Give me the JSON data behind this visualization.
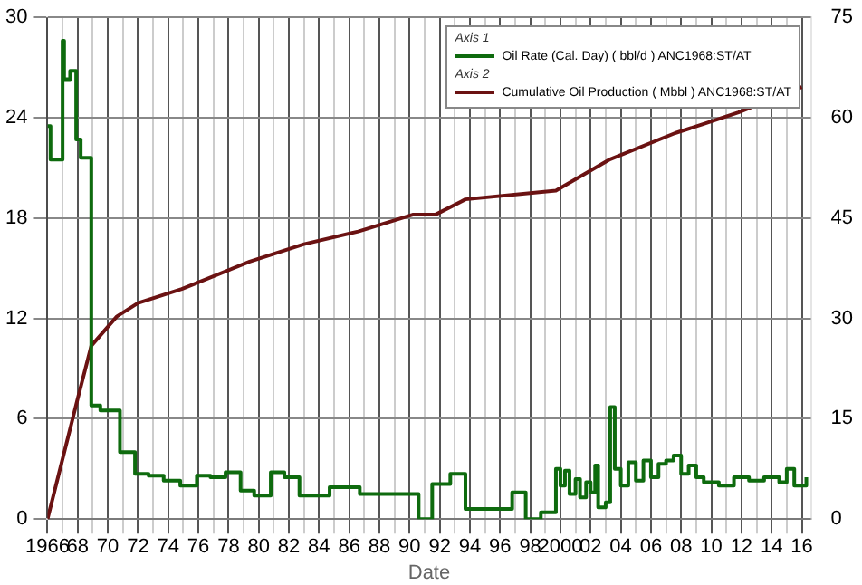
{
  "chart_data": {
    "type": "line",
    "xlabel": "Date",
    "legend": "top right",
    "grid": true,
    "annotations": [
      "Axis 1",
      "Axis 2"
    ],
    "xlim": [
      1966,
      2016.6
    ],
    "ylim": [
      0,
      30
    ],
    "yticks": [
      0,
      6,
      12,
      18,
      24,
      30
    ],
    "y2lim": [
      0,
      75
    ],
    "y2ticks": [
      0,
      15,
      30,
      45,
      60,
      75
    ],
    "xticks": [
      {
        "value": 1966,
        "label": "1966"
      },
      {
        "value": 1967,
        "label": null
      },
      {
        "value": 1968,
        "label": "68"
      },
      {
        "value": 1969,
        "label": null
      },
      {
        "value": 1970,
        "label": "70"
      },
      {
        "value": 1971,
        "label": null
      },
      {
        "value": 1972,
        "label": "72"
      },
      {
        "value": 1973,
        "label": null
      },
      {
        "value": 1974,
        "label": "74"
      },
      {
        "value": 1975,
        "label": null
      },
      {
        "value": 1976,
        "label": "76"
      },
      {
        "value": 1977,
        "label": null
      },
      {
        "value": 1978,
        "label": "78"
      },
      {
        "value": 1979,
        "label": null
      },
      {
        "value": 1980,
        "label": "80"
      },
      {
        "value": 1981,
        "label": null
      },
      {
        "value": 1982,
        "label": "82"
      },
      {
        "value": 1983,
        "label": null
      },
      {
        "value": 1984,
        "label": "84"
      },
      {
        "value": 1985,
        "label": null
      },
      {
        "value": 1986,
        "label": "86"
      },
      {
        "value": 1987,
        "label": null
      },
      {
        "value": 1988,
        "label": "88"
      },
      {
        "value": 1989,
        "label": null
      },
      {
        "value": 1990,
        "label": "90"
      },
      {
        "value": 1991,
        "label": null
      },
      {
        "value": 1992,
        "label": "92"
      },
      {
        "value": 1993,
        "label": null
      },
      {
        "value": 1994,
        "label": "94"
      },
      {
        "value": 1995,
        "label": null
      },
      {
        "value": 1996,
        "label": "96"
      },
      {
        "value": 1997,
        "label": null
      },
      {
        "value": 1998,
        "label": "98"
      },
      {
        "value": 1999,
        "label": null
      },
      {
        "value": 2000,
        "label": "2000"
      },
      {
        "value": 2001,
        "label": null
      },
      {
        "value": 2002,
        "label": "02"
      },
      {
        "value": 2003,
        "label": null
      },
      {
        "value": 2004,
        "label": "04"
      },
      {
        "value": 2005,
        "label": null
      },
      {
        "value": 2006,
        "label": "06"
      },
      {
        "value": 2007,
        "label": null
      },
      {
        "value": 2008,
        "label": "08"
      },
      {
        "value": 2009,
        "label": null
      },
      {
        "value": 2010,
        "label": "10"
      },
      {
        "value": 2011,
        "label": null
      },
      {
        "value": 2012,
        "label": "12"
      },
      {
        "value": 2013,
        "label": null
      },
      {
        "value": 2014,
        "label": "14"
      },
      {
        "value": 2015,
        "label": null
      },
      {
        "value": 2016,
        "label": "16"
      }
    ],
    "series": [
      {
        "name": "Oil Rate (Cal. Day) ( bbl/d ) ANC1968:ST/AT",
        "type": "step",
        "color": "#0e6b0e",
        "x": [
          1966.0,
          1966.2,
          1967.0,
          1967.1,
          1967.5,
          1967.9,
          1968.2,
          1968.9,
          1969.5,
          1970.8,
          1971.8,
          1972.7,
          1973.7,
          1974.8,
          1975.9,
          1976.8,
          1977.8,
          1978.8,
          1979.7,
          1980.8,
          1981.7,
          1982.7,
          1984.7,
          1986.7,
          1990.6,
          1991.5,
          1992.7,
          1993.7,
          1996.8,
          1997.7,
          1998.7,
          1999.7,
          2000.0,
          2000.3,
          2000.6,
          2001.0,
          2001.3,
          2001.7,
          2002.0,
          2002.3,
          2002.5,
          2003.0,
          2003.3,
          2003.6,
          2004.0,
          2004.5,
          2005.0,
          2005.5,
          2006.0,
          2006.5,
          2007.0,
          2007.5,
          2008.0,
          2008.5,
          2009.0,
          2009.5,
          2010.5,
          2011.5,
          2012.5,
          2013.5,
          2014.5,
          2015.0,
          2015.5,
          2016.3
        ],
        "values": [
          23.5,
          21.5,
          28.6,
          26.3,
          26.8,
          22.7,
          21.6,
          6.8,
          6.5,
          4.0,
          2.7,
          2.6,
          2.3,
          2.0,
          2.6,
          2.5,
          2.8,
          1.7,
          1.4,
          2.8,
          2.5,
          1.4,
          1.9,
          1.5,
          0,
          2.1,
          2.7,
          0.6,
          1.6,
          0,
          0.4,
          3.0,
          2.0,
          2.9,
          1.5,
          2.4,
          1.3,
          2.2,
          1.6,
          3.2,
          0.7,
          1.0,
          6.7,
          3.0,
          2.0,
          3.4,
          2.3,
          3.5,
          2.5,
          3.3,
          3.5,
          3.8,
          2.7,
          3.2,
          2.5,
          2.2,
          2.0,
          2.5,
          2.3,
          2.5,
          2.2,
          3.0,
          2.0,
          2.5
        ]
      },
      {
        "name": "Cumulative Oil Production ( Mbbl ) ANC1968:ST/AT",
        "type": "line",
        "axis": "y2",
        "color": "#6b1212",
        "x": [
          1966.0,
          1967.0,
          1968.0,
          1968.9,
          1970.6,
          1972.0,
          1974.9,
          1975.8,
          1979.4,
          1983.0,
          1986.6,
          1990.2,
          1991.7,
          1993.7,
          1999.7,
          2003.3,
          2007.6,
          2009.4,
          2011.8,
          2016.0
        ],
        "values": [
          0,
          9,
          18,
          25.9,
          30.3,
          32.3,
          34.4,
          35.2,
          38.5,
          41.1,
          43.0,
          45.5,
          45.5,
          47.8,
          49.1,
          53.8,
          57.7,
          59.0,
          60.8,
          64.6
        ]
      }
    ]
  }
}
